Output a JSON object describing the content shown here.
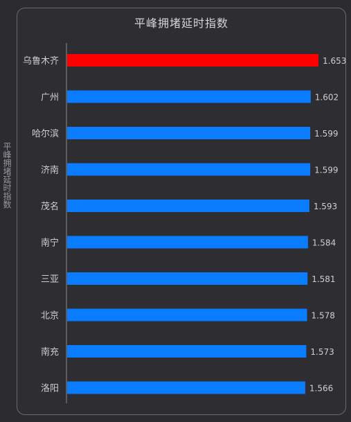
{
  "chart_data": {
    "type": "bar",
    "orientation": "horizontal",
    "title": "平峰拥堵延时指数",
    "ylabel": "平峰拥堵延时指数",
    "xlabel": "",
    "categories": [
      "乌鲁木齐",
      "广州",
      "哈尔滨",
      "济南",
      "茂名",
      "南宁",
      "三亚",
      "北京",
      "南充",
      "洛阳"
    ],
    "values": [
      1.653,
      1.602,
      1.599,
      1.599,
      1.593,
      1.584,
      1.581,
      1.578,
      1.573,
      1.566
    ],
    "value_labels": [
      "1.653",
      "1.602",
      "1.599",
      "1.599",
      "1.593",
      "1.584",
      "1.581",
      "1.578",
      "1.573",
      "1.566"
    ],
    "xlim": [
      0,
      1.653
    ],
    "grid": false,
    "colors": {
      "highlight": "#ff0000",
      "default": "#0a7cff",
      "axis": "#8a8a8a",
      "background": "#2b2b30"
    }
  }
}
